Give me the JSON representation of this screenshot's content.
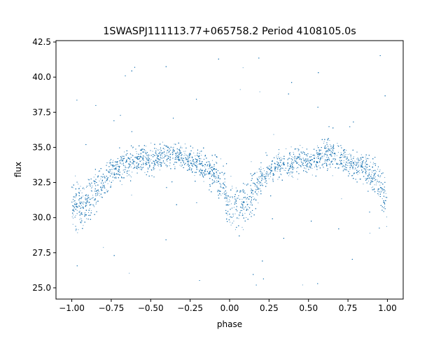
{
  "chart_data": {
    "type": "scatter",
    "title": "1SWASPJ111113.77+065758.2 Period 4108105.0s",
    "xlabel": "phase",
    "ylabel": "flux",
    "xlim": [
      -1.1,
      1.1
    ],
    "ylim": [
      24.2,
      42.6
    ],
    "xticks": [
      -1.0,
      -0.75,
      -0.5,
      -0.25,
      0.0,
      0.25,
      0.5,
      0.75,
      1.0
    ],
    "xtick_labels": [
      "−1.00",
      "−0.75",
      "−0.50",
      "−0.25",
      "0.00",
      "0.25",
      "0.50",
      "0.75",
      "1.00"
    ],
    "yticks": [
      25.0,
      27.5,
      30.0,
      32.5,
      35.0,
      37.5,
      40.0,
      42.5
    ],
    "ytick_labels": [
      "25.0",
      "27.5",
      "30.0",
      "32.5",
      "35.0",
      "37.5",
      "40.0",
      "42.5"
    ],
    "grid": false,
    "legend": "none",
    "point_color": "#1f77b4",
    "series": [
      {
        "profile_phase": [
          0.0,
          0.05,
          0.1,
          0.15,
          0.2,
          0.25,
          0.3,
          0.35,
          0.4,
          0.45,
          0.5,
          0.55,
          0.6,
          0.65,
          0.7,
          0.75,
          0.8,
          0.85,
          0.9,
          0.95,
          1.0
        ],
        "profile_flux": [
          31.0,
          30.8,
          31.0,
          31.8,
          32.6,
          33.2,
          33.5,
          33.8,
          34.0,
          34.2,
          34.0,
          34.2,
          34.5,
          34.5,
          34.2,
          34.0,
          33.8,
          33.6,
          33.2,
          32.5,
          31.0
        ],
        "profile_spread": [
          1.4,
          1.3,
          1.3,
          1.1,
          1.0,
          0.9,
          0.9,
          0.8,
          0.8,
          0.8,
          0.8,
          0.8,
          0.8,
          0.8,
          0.8,
          0.8,
          0.8,
          0.9,
          1.0,
          1.2,
          1.4
        ],
        "point_count": 9000,
        "outlier_fraction": 0.03,
        "outlier_range": [
          25.0,
          41.8
        ]
      }
    ]
  }
}
